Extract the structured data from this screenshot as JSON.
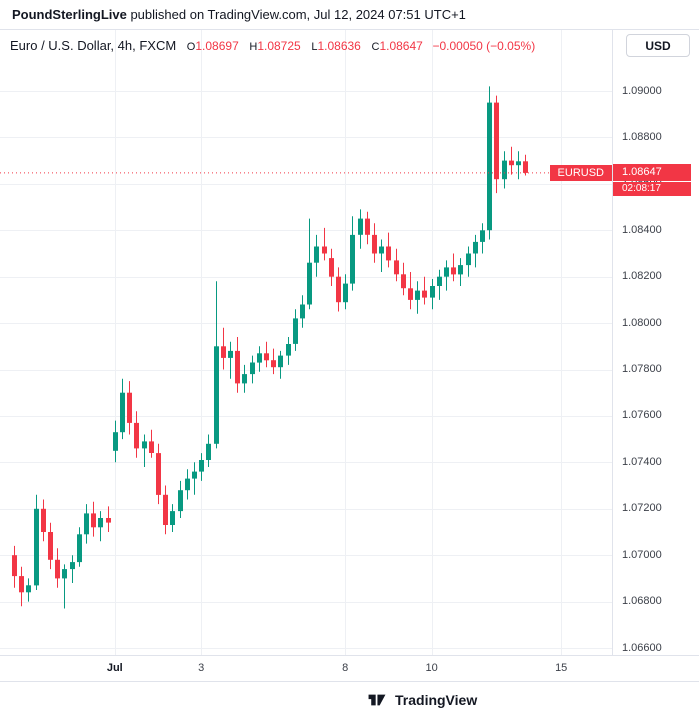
{
  "publish_bar": {
    "source": "PoundSterlingLive",
    "rest": " published on TradingView.com, Jul 12, 2024 07:51 UTC+1"
  },
  "legend": {
    "title": "Euro / U.S. Dollar, 4h, FXCM",
    "o_label": "O",
    "o": "1.08697",
    "h_label": "H",
    "h": "1.08725",
    "l_label": "L",
    "l": "1.08636",
    "c_label": "C",
    "c": "1.08647",
    "change": "−0.00050 (−0.05%)"
  },
  "currency_button": {
    "label": "USD"
  },
  "price_line": {
    "label": "EURUSD",
    "price_text": "1.08647",
    "countdown": "02:08:17",
    "value": 1.08647
  },
  "footer": {
    "brand": "TradingView"
  },
  "colors": {
    "up": "#089981",
    "down": "#f23645",
    "grid": "#eef0f4",
    "axis_text": "#3c4049",
    "accent_red": "#f23645"
  },
  "chart_data": {
    "type": "candlestick",
    "title": "Euro / U.S. Dollar, 4h, FXCM",
    "symbol": "EURUSD",
    "timeframe": "4h",
    "exchange": "FXCM",
    "last_price": 1.08647,
    "y_axis": {
      "min": 1.066,
      "max": 1.09,
      "tick": 0.002,
      "labels": [
        "1.09000",
        "1.08800",
        "1.08600",
        "1.08400",
        "1.08200",
        "1.08000",
        "1.07800",
        "1.07600",
        "1.07400",
        "1.07200",
        "1.07000",
        "1.06800",
        "1.06600"
      ]
    },
    "x_axis": {
      "labels": [
        {
          "text": "Jul",
          "index": 14,
          "bold": true
        },
        {
          "text": "3",
          "index": 26,
          "bold": false
        },
        {
          "text": "8",
          "index": 46,
          "bold": false
        },
        {
          "text": "10",
          "index": 58,
          "bold": false
        },
        {
          "text": "15",
          "index": 76,
          "bold": false
        }
      ]
    },
    "candles": [
      {
        "t": "Jun 26 16:00",
        "o": 1.07,
        "h": 1.0704,
        "l": 1.0686,
        "c": 1.0691
      },
      {
        "t": "Jun 26 20:00",
        "o": 1.0691,
        "h": 1.0695,
        "l": 1.0678,
        "c": 1.0684
      },
      {
        "t": "Jun 27 00:00",
        "o": 1.0684,
        "h": 1.069,
        "l": 1.068,
        "c": 1.0687
      },
      {
        "t": "Jun 27 04:00",
        "o": 1.0687,
        "h": 1.0726,
        "l": 1.0685,
        "c": 1.072
      },
      {
        "t": "Jun 27 08:00",
        "o": 1.072,
        "h": 1.0724,
        "l": 1.0706,
        "c": 1.071
      },
      {
        "t": "Jun 27 12:00",
        "o": 1.071,
        "h": 1.0714,
        "l": 1.0694,
        "c": 1.0698
      },
      {
        "t": "Jun 27 16:00",
        "o": 1.0698,
        "h": 1.0703,
        "l": 1.0686,
        "c": 1.069
      },
      {
        "t": "Jun 27 20:00",
        "o": 1.069,
        "h": 1.0696,
        "l": 1.0677,
        "c": 1.0694
      },
      {
        "t": "Jun 28 00:00",
        "o": 1.0694,
        "h": 1.07,
        "l": 1.0688,
        "c": 1.0697
      },
      {
        "t": "Jun 28 04:00",
        "o": 1.0697,
        "h": 1.0712,
        "l": 1.0695,
        "c": 1.0709
      },
      {
        "t": "Jun 28 08:00",
        "o": 1.0709,
        "h": 1.0722,
        "l": 1.0705,
        "c": 1.0718
      },
      {
        "t": "Jun 28 12:00",
        "o": 1.0718,
        "h": 1.0723,
        "l": 1.0708,
        "c": 1.0712
      },
      {
        "t": "Jun 28 16:00",
        "o": 1.0712,
        "h": 1.0719,
        "l": 1.0706,
        "c": 1.0716
      },
      {
        "t": "Jun 28 20:00",
        "o": 1.0716,
        "h": 1.0721,
        "l": 1.071,
        "c": 1.0714
      },
      {
        "t": "Jul 1 00:00",
        "o": 1.0745,
        "h": 1.0758,
        "l": 1.074,
        "c": 1.0753
      },
      {
        "t": "Jul 1 04:00",
        "o": 1.0753,
        "h": 1.0776,
        "l": 1.075,
        "c": 1.077
      },
      {
        "t": "Jul 1 08:00",
        "o": 1.077,
        "h": 1.0775,
        "l": 1.0752,
        "c": 1.0757
      },
      {
        "t": "Jul 1 12:00",
        "o": 1.0757,
        "h": 1.0762,
        "l": 1.0742,
        "c": 1.0746
      },
      {
        "t": "Jul 1 16:00",
        "o": 1.0746,
        "h": 1.0752,
        "l": 1.0738,
        "c": 1.0749
      },
      {
        "t": "Jul 1 20:00",
        "o": 1.0749,
        "h": 1.0754,
        "l": 1.0742,
        "c": 1.0744
      },
      {
        "t": "Jul 2 00:00",
        "o": 1.0744,
        "h": 1.0748,
        "l": 1.0722,
        "c": 1.0726
      },
      {
        "t": "Jul 2 04:00",
        "o": 1.0726,
        "h": 1.073,
        "l": 1.0709,
        "c": 1.0713
      },
      {
        "t": "Jul 2 08:00",
        "o": 1.0713,
        "h": 1.0722,
        "l": 1.071,
        "c": 1.0719
      },
      {
        "t": "Jul 2 12:00",
        "o": 1.0719,
        "h": 1.0732,
        "l": 1.0716,
        "c": 1.0728
      },
      {
        "t": "Jul 2 16:00",
        "o": 1.0728,
        "h": 1.0737,
        "l": 1.0724,
        "c": 1.0733
      },
      {
        "t": "Jul 2 20:00",
        "o": 1.0733,
        "h": 1.074,
        "l": 1.0726,
        "c": 1.0736
      },
      {
        "t": "Jul 3 00:00",
        "o": 1.0736,
        "h": 1.0744,
        "l": 1.0732,
        "c": 1.0741
      },
      {
        "t": "Jul 3 04:00",
        "o": 1.0741,
        "h": 1.0752,
        "l": 1.0738,
        "c": 1.0748
      },
      {
        "t": "Jul 3 08:00",
        "o": 1.0748,
        "h": 1.0818,
        "l": 1.0746,
        "c": 1.079
      },
      {
        "t": "Jul 3 12:00",
        "o": 1.079,
        "h": 1.0798,
        "l": 1.078,
        "c": 1.0785
      },
      {
        "t": "Jul 3 16:00",
        "o": 1.0785,
        "h": 1.0792,
        "l": 1.0776,
        "c": 1.0788
      },
      {
        "t": "Jul 3 20:00",
        "o": 1.0788,
        "h": 1.0794,
        "l": 1.077,
        "c": 1.0774
      },
      {
        "t": "Jul 4 00:00",
        "o": 1.0774,
        "h": 1.0782,
        "l": 1.077,
        "c": 1.0778
      },
      {
        "t": "Jul 4 04:00",
        "o": 1.0778,
        "h": 1.0786,
        "l": 1.0774,
        "c": 1.0783
      },
      {
        "t": "Jul 4 08:00",
        "o": 1.0783,
        "h": 1.079,
        "l": 1.0779,
        "c": 1.0787
      },
      {
        "t": "Jul 4 12:00",
        "o": 1.0787,
        "h": 1.0792,
        "l": 1.0781,
        "c": 1.0784
      },
      {
        "t": "Jul 4 16:00",
        "o": 1.0784,
        "h": 1.0789,
        "l": 1.0778,
        "c": 1.0781
      },
      {
        "t": "Jul 4 20:00",
        "o": 1.0781,
        "h": 1.0788,
        "l": 1.0776,
        "c": 1.0786
      },
      {
        "t": "Jul 5 00:00",
        "o": 1.0786,
        "h": 1.0794,
        "l": 1.0782,
        "c": 1.0791
      },
      {
        "t": "Jul 5 04:00",
        "o": 1.0791,
        "h": 1.0806,
        "l": 1.0788,
        "c": 1.0802
      },
      {
        "t": "Jul 5 08:00",
        "o": 1.0802,
        "h": 1.0812,
        "l": 1.0798,
        "c": 1.0808
      },
      {
        "t": "Jul 5 12:00",
        "o": 1.0808,
        "h": 1.0845,
        "l": 1.0806,
        "c": 1.0826
      },
      {
        "t": "Jul 5 16:00",
        "o": 1.0826,
        "h": 1.0838,
        "l": 1.082,
        "c": 1.0833
      },
      {
        "t": "Jul 5 20:00",
        "o": 1.0833,
        "h": 1.0841,
        "l": 1.0827,
        "c": 1.083
      },
      {
        "t": "Jul 7 16:00",
        "o": 1.0828,
        "h": 1.0832,
        "l": 1.0816,
        "c": 1.082
      },
      {
        "t": "Jul 7 20:00",
        "o": 1.082,
        "h": 1.0824,
        "l": 1.0805,
        "c": 1.0809
      },
      {
        "t": "Jul 8 00:00",
        "o": 1.0809,
        "h": 1.0821,
        "l": 1.0806,
        "c": 1.0817
      },
      {
        "t": "Jul 8 04:00",
        "o": 1.0817,
        "h": 1.0846,
        "l": 1.0814,
        "c": 1.0838
      },
      {
        "t": "Jul 8 08:00",
        "o": 1.0838,
        "h": 1.0849,
        "l": 1.0832,
        "c": 1.0845
      },
      {
        "t": "Jul 8 12:00",
        "o": 1.0845,
        "h": 1.0848,
        "l": 1.0834,
        "c": 1.0838
      },
      {
        "t": "Jul 8 16:00",
        "o": 1.0838,
        "h": 1.0843,
        "l": 1.0826,
        "c": 1.083
      },
      {
        "t": "Jul 8 20:00",
        "o": 1.083,
        "h": 1.0836,
        "l": 1.0822,
        "c": 1.0833
      },
      {
        "t": "Jul 9 00:00",
        "o": 1.0833,
        "h": 1.0839,
        "l": 1.0824,
        "c": 1.0827
      },
      {
        "t": "Jul 9 04:00",
        "o": 1.0827,
        "h": 1.0832,
        "l": 1.0818,
        "c": 1.0821
      },
      {
        "t": "Jul 9 08:00",
        "o": 1.0821,
        "h": 1.0826,
        "l": 1.0812,
        "c": 1.0815
      },
      {
        "t": "Jul 9 12:00",
        "o": 1.0815,
        "h": 1.0822,
        "l": 1.0806,
        "c": 1.081
      },
      {
        "t": "Jul 9 16:00",
        "o": 1.081,
        "h": 1.0818,
        "l": 1.0804,
        "c": 1.0814
      },
      {
        "t": "Jul 9 20:00",
        "o": 1.0814,
        "h": 1.082,
        "l": 1.0808,
        "c": 1.0811
      },
      {
        "t": "Jul 10 00:00",
        "o": 1.0811,
        "h": 1.0819,
        "l": 1.0806,
        "c": 1.0816
      },
      {
        "t": "Jul 10 04:00",
        "o": 1.0816,
        "h": 1.0823,
        "l": 1.081,
        "c": 1.082
      },
      {
        "t": "Jul 10 08:00",
        "o": 1.082,
        "h": 1.0827,
        "l": 1.0814,
        "c": 1.0824
      },
      {
        "t": "Jul 10 12:00",
        "o": 1.0824,
        "h": 1.083,
        "l": 1.0818,
        "c": 1.0821
      },
      {
        "t": "Jul 10 16:00",
        "o": 1.0821,
        "h": 1.0828,
        "l": 1.0816,
        "c": 1.0825
      },
      {
        "t": "Jul 10 20:00",
        "o": 1.0825,
        "h": 1.0833,
        "l": 1.082,
        "c": 1.083
      },
      {
        "t": "Jul 11 00:00",
        "o": 1.083,
        "h": 1.0838,
        "l": 1.0824,
        "c": 1.0835
      },
      {
        "t": "Jul 11 04:00",
        "o": 1.0835,
        "h": 1.0843,
        "l": 1.083,
        "c": 1.084
      },
      {
        "t": "Jul 11 08:00",
        "o": 1.084,
        "h": 1.0902,
        "l": 1.0836,
        "c": 1.0895
      },
      {
        "t": "Jul 11 12:00",
        "o": 1.0895,
        "h": 1.0898,
        "l": 1.0856,
        "c": 1.0862
      },
      {
        "t": "Jul 11 16:00",
        "o": 1.0862,
        "h": 1.0874,
        "l": 1.0858,
        "c": 1.087
      },
      {
        "t": "Jul 11 20:00",
        "o": 1.087,
        "h": 1.0876,
        "l": 1.0864,
        "c": 1.0868
      },
      {
        "t": "Jul 12 00:00",
        "o": 1.0868,
        "h": 1.0874,
        "l": 1.0862,
        "c": 1.08697
      },
      {
        "t": "Jul 12 04:00",
        "o": 1.08697,
        "h": 1.08725,
        "l": 1.08636,
        "c": 1.08647
      }
    ]
  }
}
